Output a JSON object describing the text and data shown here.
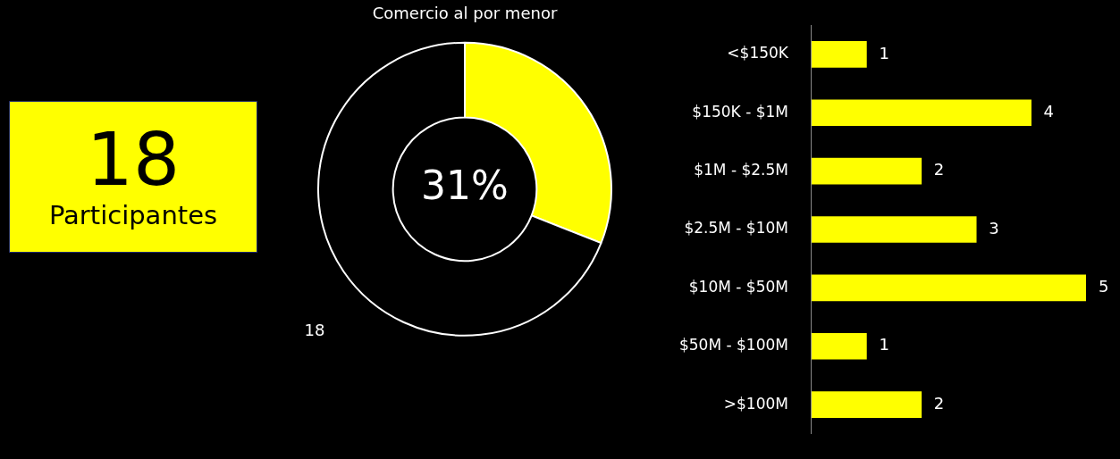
{
  "chart_data": [
    {
      "type": "other",
      "annotations": [
        "18",
        "Participantes"
      ]
    },
    {
      "type": "donut",
      "title": "Comercio al por menor",
      "categories": [
        null,
        null
      ],
      "values": [
        31,
        69
      ],
      "colors": [
        "#ffff00",
        "#000000"
      ],
      "annotations": [
        "31%",
        "18"
      ],
      "legend": false
    },
    {
      "type": "bar",
      "orientation": "horizontal",
      "categories": [
        "<$150K",
        "$150K - $1M",
        "$1M - $2.5M",
        "$2.5M - $10M",
        "$10M - $50M",
        "$50M - $100M",
        ">$100M"
      ],
      "values": [
        1,
        4,
        2,
        3,
        5,
        1,
        2
      ],
      "color": "#ffff00",
      "data_labels": true,
      "legend": false
    }
  ]
}
